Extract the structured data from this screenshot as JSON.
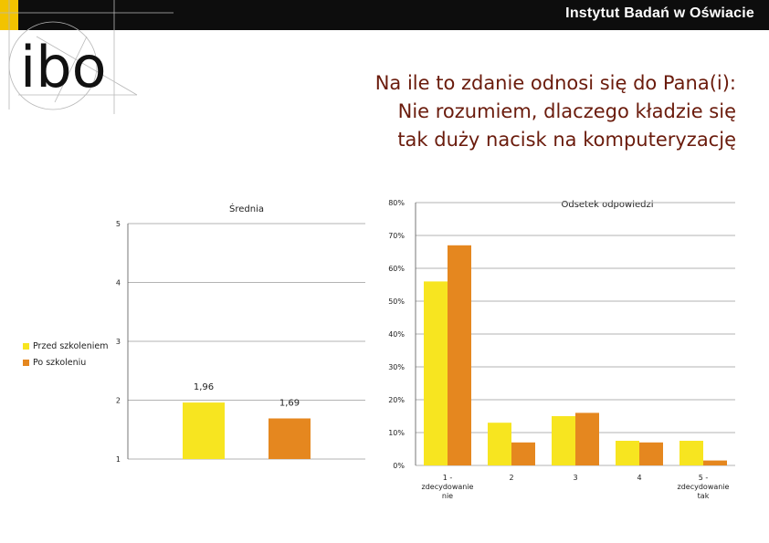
{
  "header": {
    "institute": "Instytut Badań w Oświacie",
    "logo_text": "ibo"
  },
  "slide": {
    "title_lines": [
      "Na ile to zdanie odnosi się do Pana(i):",
      "Nie rozumiem, dlaczego kładzie się",
      "tak duży nacisk na komputeryzację"
    ]
  },
  "colors": {
    "before": "#f7e520",
    "after": "#e5871f",
    "title": "#6a1b0c",
    "gridline": "#9a9a9a"
  },
  "legend": [
    "Przed szkoleniem",
    "Po szkoleniu"
  ],
  "chart_data": [
    {
      "type": "bar",
      "title": "Średnia",
      "categories": [
        ""
      ],
      "series": [
        {
          "name": "Przed szkoleniem",
          "values": [
            1.96
          ]
        },
        {
          "name": "Po szkoleniu",
          "values": [
            1.69
          ]
        }
      ],
      "data_labels": [
        "1,96",
        "1,69"
      ],
      "ylim": [
        1,
        5
      ],
      "yticks": [
        "1",
        "2",
        "3",
        "4",
        "5"
      ],
      "grid": true
    },
    {
      "type": "bar",
      "title": "Odsetek odpowiedzi",
      "categories": [
        "1 - zdecydowanie nie",
        "2",
        "3",
        "4",
        "5 - zdecydowanie tak"
      ],
      "category_label_lines": [
        [
          "1 -",
          "zdecydowanie",
          "nie"
        ],
        [
          "2"
        ],
        [
          "3"
        ],
        [
          "4"
        ],
        [
          "5 -",
          "zdecydowanie",
          "tak"
        ]
      ],
      "series": [
        {
          "name": "Przed szkoleniem",
          "values": [
            56,
            13,
            15,
            7.5,
            7.5
          ]
        },
        {
          "name": "Po szkoleniu",
          "values": [
            67,
            7,
            16,
            7,
            1.5
          ]
        }
      ],
      "ylim": [
        0,
        80
      ],
      "yticks": [
        "0%",
        "10%",
        "20%",
        "30%",
        "40%",
        "50%",
        "60%",
        "70%",
        "80%"
      ],
      "grid": true
    }
  ]
}
